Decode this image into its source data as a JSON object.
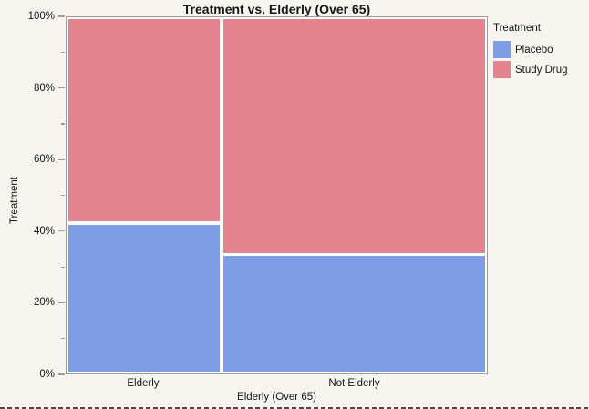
{
  "colors": {
    "background": "#f6f5ef",
    "frame": "#9b9b97",
    "text": "#151515",
    "placebo_blue": "#7f9ce6",
    "study_drug_red": "#e3848f"
  },
  "chart_data": {
    "type": "mosaic",
    "title": "Treatment vs. Elderly (Over 65)",
    "xlabel": "Elderly (Over 65)",
    "ylabel": "Treatment",
    "legend_title": "Treatment",
    "y_axis": {
      "unit": "percent",
      "range": [
        0,
        100
      ],
      "major_tick_labels": [
        "0%",
        "20%",
        "40%",
        "60%",
        "80%",
        "100%"
      ],
      "minor_ticks_every_pct": 10,
      "grid": false
    },
    "legend_position": "top-right",
    "x_categories": [
      {
        "label": "Elderly",
        "width_pct": 36.7
      },
      {
        "label": "Not Elderly",
        "width_pct": 63.3
      }
    ],
    "series": [
      {
        "name": "Placebo",
        "color": "#7f9ce6",
        "stack_position": "bottom",
        "values_pct": [
          42,
          33
        ]
      },
      {
        "name": "Study Drug",
        "color": "#e3848f",
        "stack_position": "top",
        "values_pct": [
          58,
          67
        ]
      }
    ]
  }
}
